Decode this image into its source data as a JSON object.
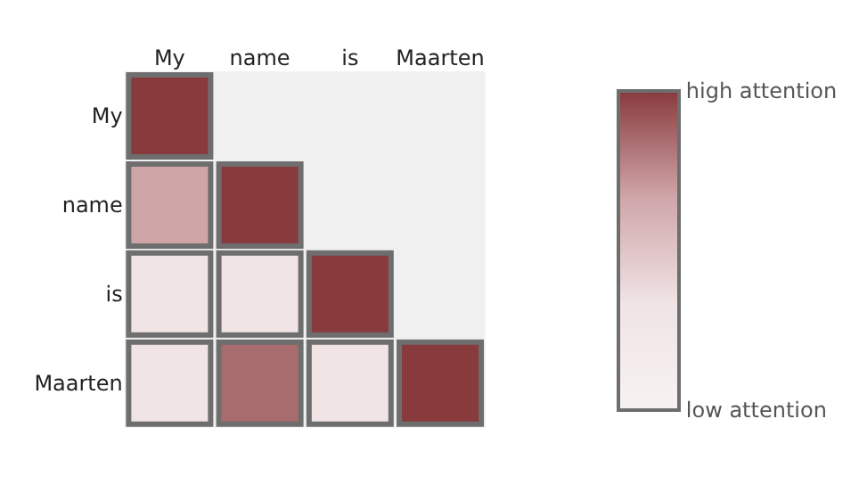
{
  "chart_data": {
    "type": "heatmap",
    "categories": [
      "My",
      "name",
      "is",
      "Maarten"
    ],
    "y_categories": [
      "My",
      "name",
      "is",
      "Maarten"
    ],
    "cells": [
      [
        1,
        null,
        null,
        null
      ],
      [
        0.67,
        1,
        null,
        null
      ],
      [
        0.33,
        0.33,
        1,
        null
      ],
      [
        0.33,
        0.85,
        0.33,
        1
      ]
    ],
    "clim": [
      0,
      1
    ],
    "cticks": [
      {
        "value": 0,
        "label": "low attention"
      },
      {
        "value": 1,
        "label": "high attention"
      }
    ]
  }
}
